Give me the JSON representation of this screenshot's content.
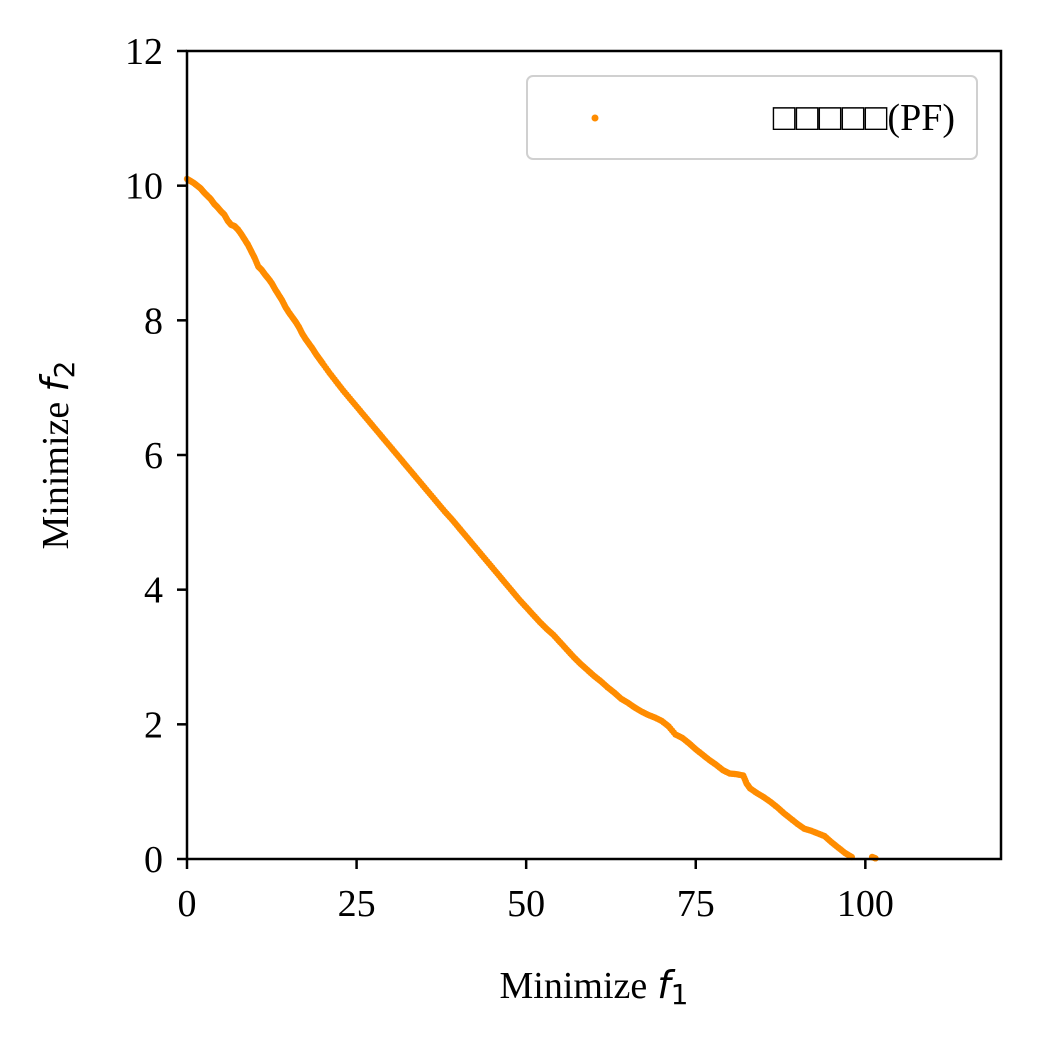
{
  "chart_data": {
    "type": "scatter",
    "title": "",
    "xlabel": "Minimize",
    "xlabel_symbol": "f",
    "xlabel_sub": "1",
    "ylabel": "Minimize",
    "ylabel_symbol": "f",
    "ylabel_sub": "2",
    "xlim": [
      0,
      120
    ],
    "ylim": [
      0,
      12
    ],
    "xticks": [
      0,
      25,
      50,
      75,
      100
    ],
    "yticks": [
      0,
      2,
      4,
      6,
      8,
      10,
      12
    ],
    "grid": false,
    "legend_position": "top-right",
    "series": [
      {
        "name": "□□□□□(PF)",
        "color": "#ff8c00",
        "points": [
          [
            0.0,
            10.1
          ],
          [
            0.5,
            10.07
          ],
          [
            1.0,
            10.04
          ],
          [
            1.5,
            10.0
          ],
          [
            2.0,
            9.96
          ],
          [
            2.5,
            9.9
          ],
          [
            3.0,
            9.85
          ],
          [
            3.5,
            9.8
          ],
          [
            4.0,
            9.73
          ],
          [
            4.5,
            9.68
          ],
          [
            5.0,
            9.62
          ],
          [
            5.5,
            9.57
          ],
          [
            6.0,
            9.48
          ],
          [
            6.5,
            9.42
          ],
          [
            7.0,
            9.4
          ],
          [
            7.5,
            9.35
          ],
          [
            8.0,
            9.28
          ],
          [
            8.5,
            9.2
          ],
          [
            9.0,
            9.12
          ],
          [
            9.5,
            9.02
          ],
          [
            10.0,
            8.92
          ],
          [
            10.5,
            8.8
          ],
          [
            11.0,
            8.75
          ],
          [
            11.5,
            8.68
          ],
          [
            12.0,
            8.62
          ],
          [
            12.5,
            8.55
          ],
          [
            13.0,
            8.46
          ],
          [
            13.5,
            8.38
          ],
          [
            14.0,
            8.3
          ],
          [
            14.5,
            8.2
          ],
          [
            15.0,
            8.12
          ],
          [
            15.5,
            8.05
          ],
          [
            16.0,
            7.98
          ],
          [
            16.5,
            7.9
          ],
          [
            17.0,
            7.8
          ],
          [
            17.5,
            7.72
          ],
          [
            18.0,
            7.65
          ],
          [
            18.5,
            7.58
          ],
          [
            19.0,
            7.5
          ],
          [
            19.5,
            7.43
          ],
          [
            20.0,
            7.36
          ],
          [
            21.0,
            7.22
          ],
          [
            22.0,
            7.09
          ],
          [
            23.0,
            6.96
          ],
          [
            24.0,
            6.84
          ],
          [
            25.0,
            6.72
          ],
          [
            26.0,
            6.6
          ],
          [
            27.0,
            6.48
          ],
          [
            28.0,
            6.36
          ],
          [
            29.0,
            6.24
          ],
          [
            30.0,
            6.12
          ],
          [
            31.0,
            6.0
          ],
          [
            32.0,
            5.88
          ],
          [
            33.0,
            5.76
          ],
          [
            34.0,
            5.64
          ],
          [
            35.0,
            5.52
          ],
          [
            36.0,
            5.4
          ],
          [
            37.0,
            5.28
          ],
          [
            38.0,
            5.16
          ],
          [
            39.0,
            5.05
          ],
          [
            40.0,
            4.93
          ],
          [
            41.0,
            4.81
          ],
          [
            42.0,
            4.69
          ],
          [
            43.0,
            4.57
          ],
          [
            44.0,
            4.45
          ],
          [
            45.0,
            4.33
          ],
          [
            46.0,
            4.21
          ],
          [
            47.0,
            4.09
          ],
          [
            48.0,
            3.97
          ],
          [
            49.0,
            3.85
          ],
          [
            50.0,
            3.74
          ],
          [
            51.0,
            3.63
          ],
          [
            52.0,
            3.52
          ],
          [
            53.0,
            3.42
          ],
          [
            54.0,
            3.33
          ],
          [
            55.0,
            3.22
          ],
          [
            56.0,
            3.11
          ],
          [
            57.0,
            3.0
          ],
          [
            58.0,
            2.9
          ],
          [
            59.0,
            2.81
          ],
          [
            60.0,
            2.72
          ],
          [
            61.0,
            2.64
          ],
          [
            62.0,
            2.55
          ],
          [
            63.0,
            2.47
          ],
          [
            64.0,
            2.38
          ],
          [
            65.0,
            2.32
          ],
          [
            66.0,
            2.25
          ],
          [
            67.0,
            2.19
          ],
          [
            68.0,
            2.14
          ],
          [
            69.0,
            2.1
          ],
          [
            70.0,
            2.05
          ],
          [
            71.0,
            1.97
          ],
          [
            72.0,
            1.85
          ],
          [
            73.0,
            1.8
          ],
          [
            74.0,
            1.72
          ],
          [
            75.0,
            1.63
          ],
          [
            76.0,
            1.55
          ],
          [
            77.0,
            1.47
          ],
          [
            78.0,
            1.4
          ],
          [
            79.0,
            1.32
          ],
          [
            80.0,
            1.27
          ],
          [
            81.0,
            1.26
          ],
          [
            82.0,
            1.24
          ],
          [
            82.5,
            1.12
          ],
          [
            83.0,
            1.05
          ],
          [
            84.0,
            0.98
          ],
          [
            85.0,
            0.92
          ],
          [
            86.0,
            0.85
          ],
          [
            87.0,
            0.77
          ],
          [
            88.0,
            0.68
          ],
          [
            89.0,
            0.6
          ],
          [
            90.0,
            0.52
          ],
          [
            91.0,
            0.45
          ],
          [
            92.0,
            0.42
          ],
          [
            93.0,
            0.38
          ],
          [
            94.0,
            0.34
          ],
          [
            95.0,
            0.25
          ],
          [
            96.0,
            0.17
          ],
          [
            97.0,
            0.09
          ],
          [
            98.0,
            0.03
          ],
          [
            101.0,
            0.03
          ],
          [
            101.5,
            0.01
          ]
        ]
      }
    ]
  }
}
